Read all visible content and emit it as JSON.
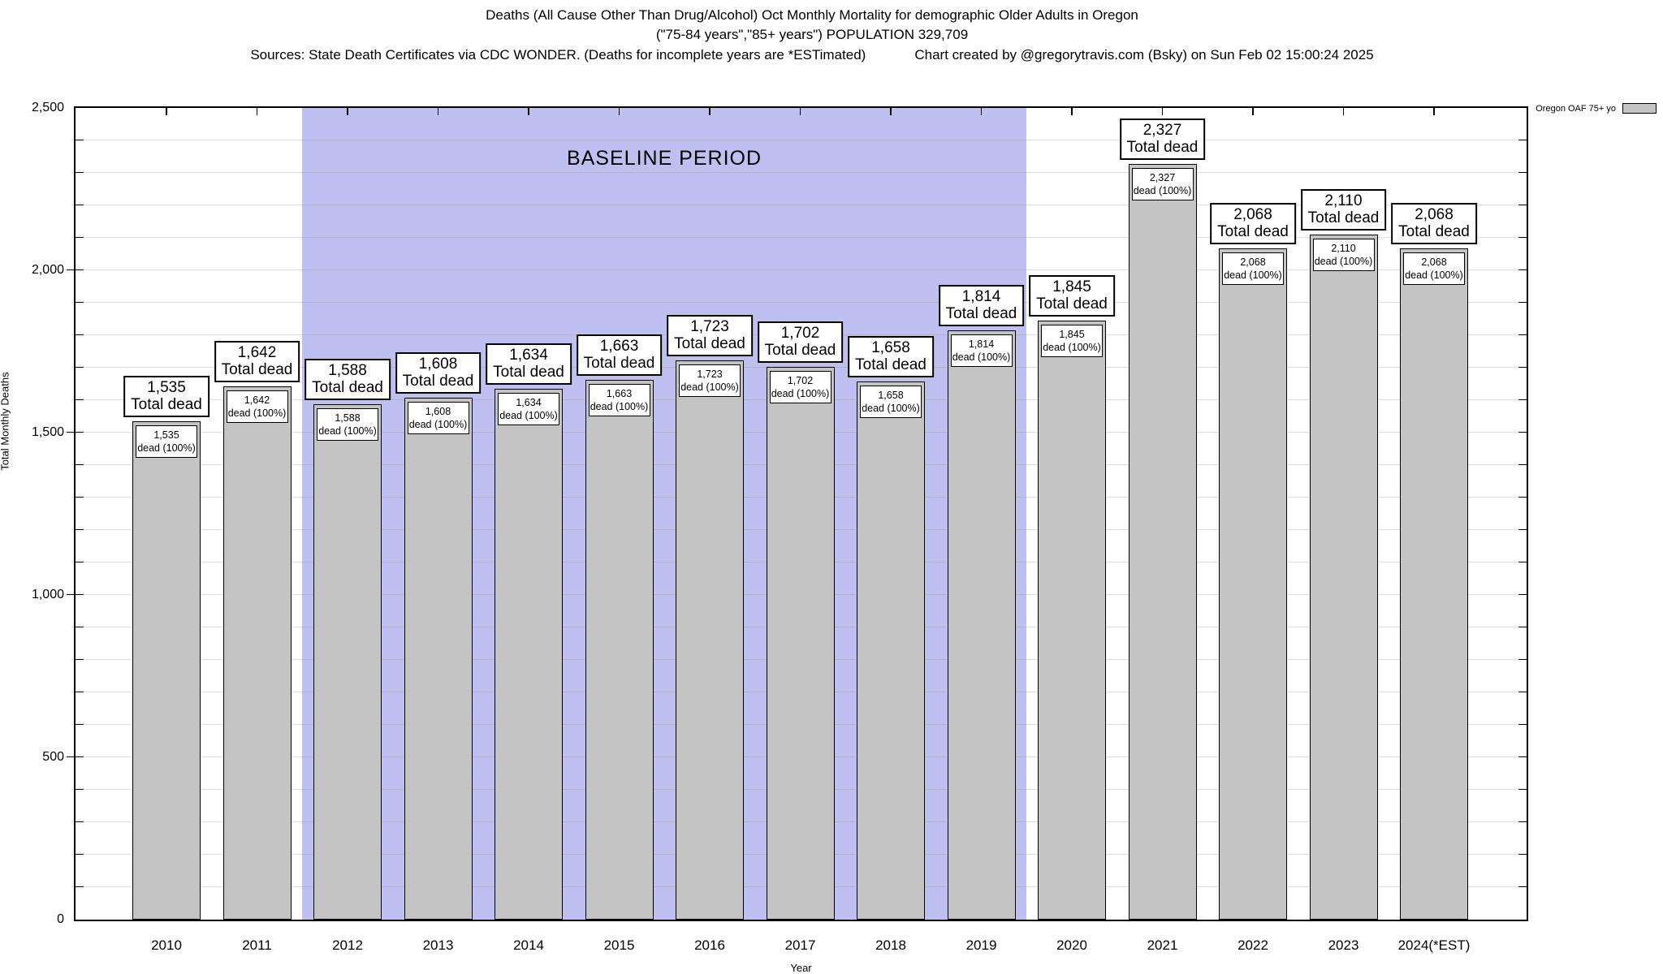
{
  "chart_data": {
    "type": "bar",
    "title": "Deaths (All Cause Other Than Drug/Alcohol) Oct Monthly Mortality for demographic Older Adults in Oregon",
    "subtitle": "(\"75-84 years\",\"85+ years\") POPULATION 329,709",
    "source_note": "Sources: State Death Certificates via CDC WONDER. (Deaths for incomplete years are *ESTimated)",
    "credit": "Chart created by @gregorytravis.com (Bsky) on Sun Feb 02 15:00:24 2025",
    "xlabel": "Year",
    "ylabel": "Total Monthly Deaths",
    "ylim": [
      0,
      2500
    ],
    "y_major_step": 500,
    "y_minor_step": 100,
    "grid": true,
    "legend": {
      "position": "top-right",
      "entries": [
        {
          "label": "Oregon OAF 75+ yo",
          "swatch_color": "#c4c4c4"
        }
      ]
    },
    "baseline_band": {
      "label": "BASELINE PERIOD",
      "start_category": "2012",
      "end_category": "2019",
      "color": "#bfbff2"
    },
    "bar_color": "#c4c4c4",
    "categories": [
      "2010",
      "2011",
      "2012",
      "2013",
      "2014",
      "2015",
      "2016",
      "2017",
      "2018",
      "2019",
      "2020",
      "2021",
      "2022",
      "2023",
      "2024(*EST)"
    ],
    "values": [
      1535,
      1642,
      1588,
      1608,
      1634,
      1663,
      1723,
      1702,
      1658,
      1814,
      1845,
      2327,
      2068,
      2110,
      2068
    ],
    "y_ticks": [
      {
        "value": 0,
        "label": "0"
      },
      {
        "value": 500,
        "label": "500"
      },
      {
        "value": 1000,
        "label": "1,000"
      },
      {
        "value": 1500,
        "label": "1,500"
      },
      {
        "value": 2000,
        "label": "2,000"
      },
      {
        "value": 2500,
        "label": "2,500"
      }
    ],
    "bars": [
      {
        "year": "2010",
        "value": 1535,
        "value_str": "1,535",
        "total_label": "Total dead",
        "inner_label": "dead (100%)"
      },
      {
        "year": "2011",
        "value": 1642,
        "value_str": "1,642",
        "total_label": "Total dead",
        "inner_label": "dead (100%)"
      },
      {
        "year": "2012",
        "value": 1588,
        "value_str": "1,588",
        "total_label": "Total dead",
        "inner_label": "dead (100%)"
      },
      {
        "year": "2013",
        "value": 1608,
        "value_str": "1,608",
        "total_label": "Total dead",
        "inner_label": "dead (100%)"
      },
      {
        "year": "2014",
        "value": 1634,
        "value_str": "1,634",
        "total_label": "Total dead",
        "inner_label": "dead (100%)"
      },
      {
        "year": "2015",
        "value": 1663,
        "value_str": "1,663",
        "total_label": "Total dead",
        "inner_label": "dead (100%)"
      },
      {
        "year": "2016",
        "value": 1723,
        "value_str": "1,723",
        "total_label": "Total dead",
        "inner_label": "dead (100%)"
      },
      {
        "year": "2017",
        "value": 1702,
        "value_str": "1,702",
        "total_label": "Total dead",
        "inner_label": "dead (100%)"
      },
      {
        "year": "2018",
        "value": 1658,
        "value_str": "1,658",
        "total_label": "Total dead",
        "inner_label": "dead (100%)"
      },
      {
        "year": "2019",
        "value": 1814,
        "value_str": "1,814",
        "total_label": "Total dead",
        "inner_label": "dead (100%)"
      },
      {
        "year": "2020",
        "value": 1845,
        "value_str": "1,845",
        "total_label": "Total dead",
        "inner_label": "dead (100%)"
      },
      {
        "year": "2021",
        "value": 2327,
        "value_str": "2,327",
        "total_label": "Total dead",
        "inner_label": "dead (100%)"
      },
      {
        "year": "2022",
        "value": 2068,
        "value_str": "2,068",
        "total_label": "Total dead",
        "inner_label": "dead (100%)"
      },
      {
        "year": "2023",
        "value": 2110,
        "value_str": "2,110",
        "total_label": "Total dead",
        "inner_label": "dead (100%)"
      },
      {
        "year": "2024(*EST)",
        "value": 2068,
        "value_str": "2,068",
        "total_label": "Total dead",
        "inner_label": "dead (100%)"
      }
    ]
  }
}
